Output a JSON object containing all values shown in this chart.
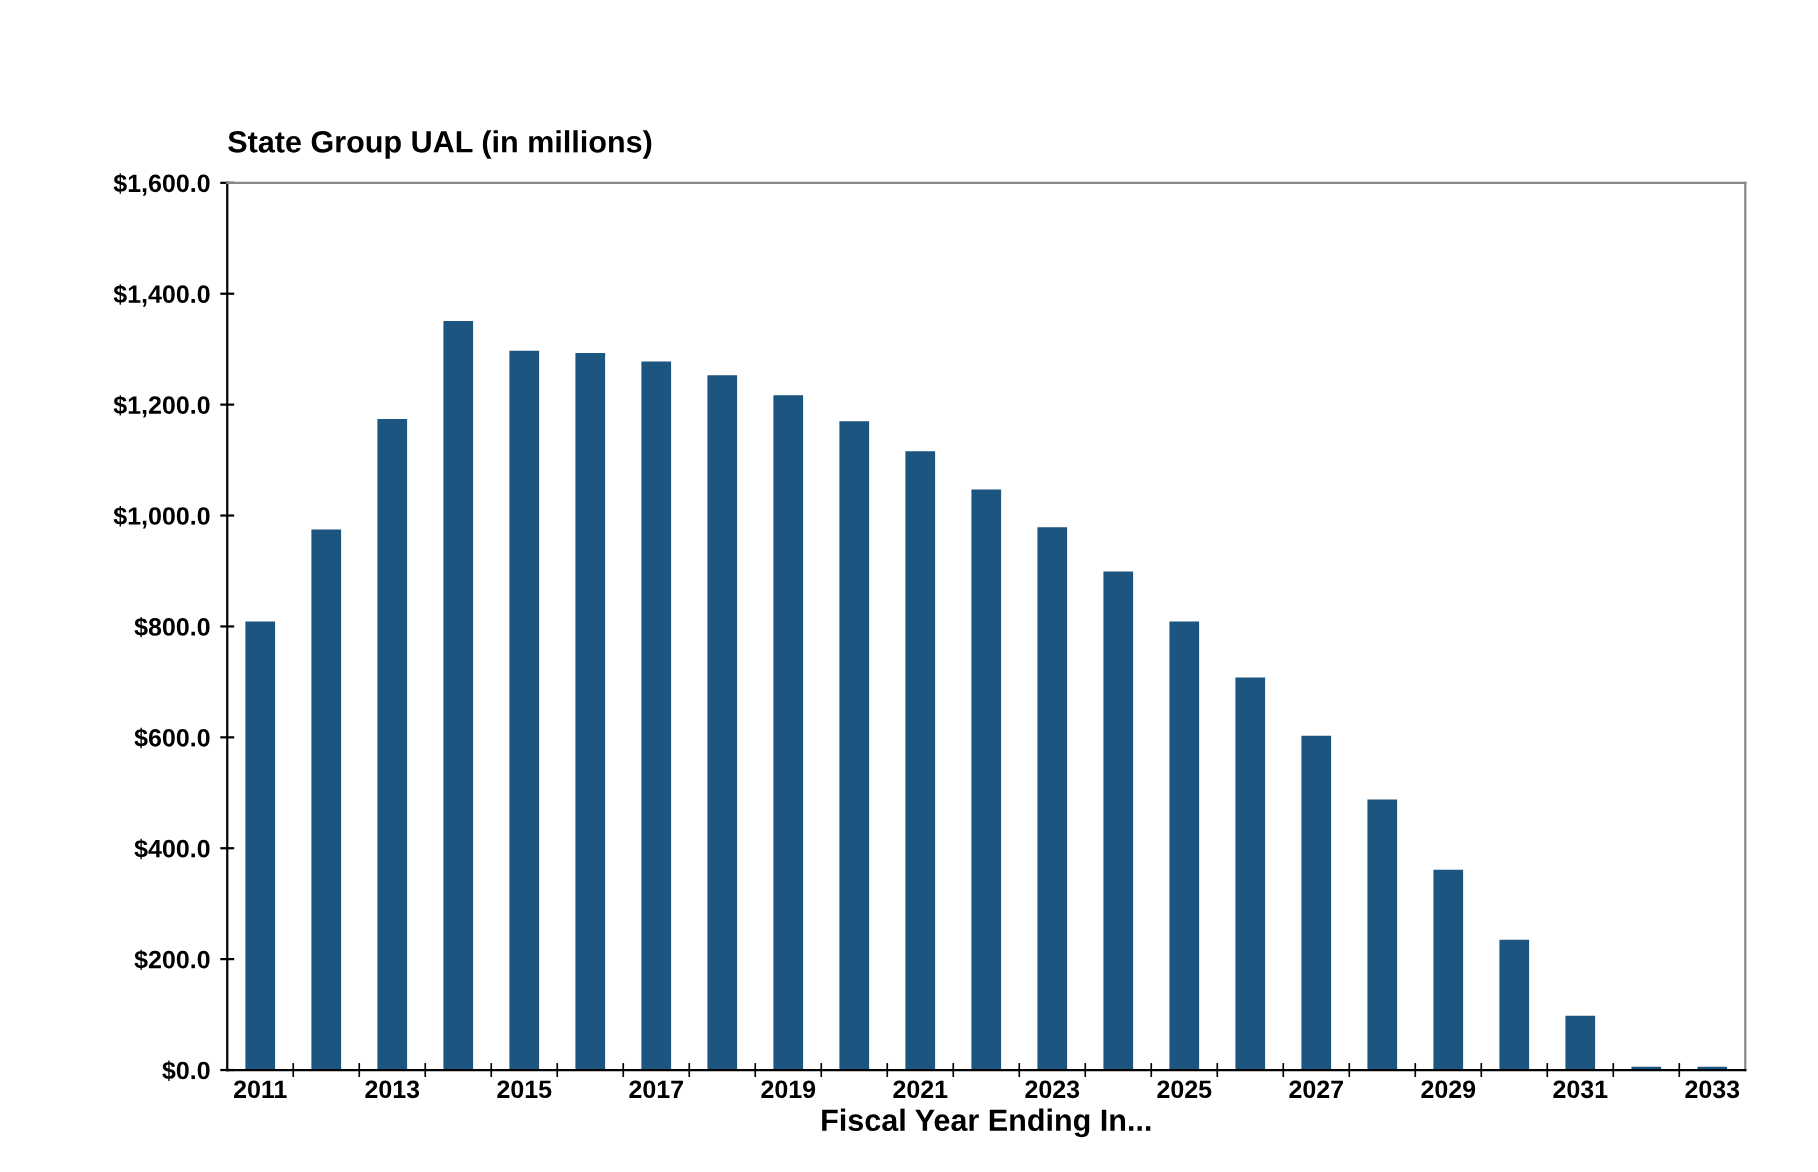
{
  "chart_data": {
    "type": "bar",
    "title": "State Group UAL (in millions)",
    "xlabel": "Fiscal Year Ending In...",
    "categories": [
      "2011",
      null,
      "2013",
      null,
      "2015",
      null,
      "2017",
      null,
      "2019",
      null,
      "2021",
      null,
      "2023",
      null,
      "2025",
      null,
      "2027",
      null,
      "2029",
      null,
      "2031",
      null,
      "2033"
    ],
    "values": [
      809,
      975,
      1174,
      1351,
      1297,
      1293,
      1278,
      1253,
      1217,
      1170,
      1116,
      1047,
      979,
      899,
      809,
      708,
      603,
      488,
      361,
      235,
      98,
      6,
      6
    ],
    "color": "#1b5580",
    "ylim": [
      0,
      1600
    ],
    "yticks": [
      {
        "value": 0,
        "label": "$0.0"
      },
      {
        "value": 200,
        "label": "$200.0"
      },
      {
        "value": 400,
        "label": "$400.0"
      },
      {
        "value": 600,
        "label": "$600.0"
      },
      {
        "value": 800,
        "label": "$800.0"
      },
      {
        "value": 1000,
        "label": "$1,000.0"
      },
      {
        "value": 1200,
        "label": "$1,200.0"
      },
      {
        "value": 1400,
        "label": "$1,400.0"
      },
      {
        "value": 1600,
        "label": "$1,600.0"
      }
    ],
    "grid": false,
    "legend": false
  }
}
